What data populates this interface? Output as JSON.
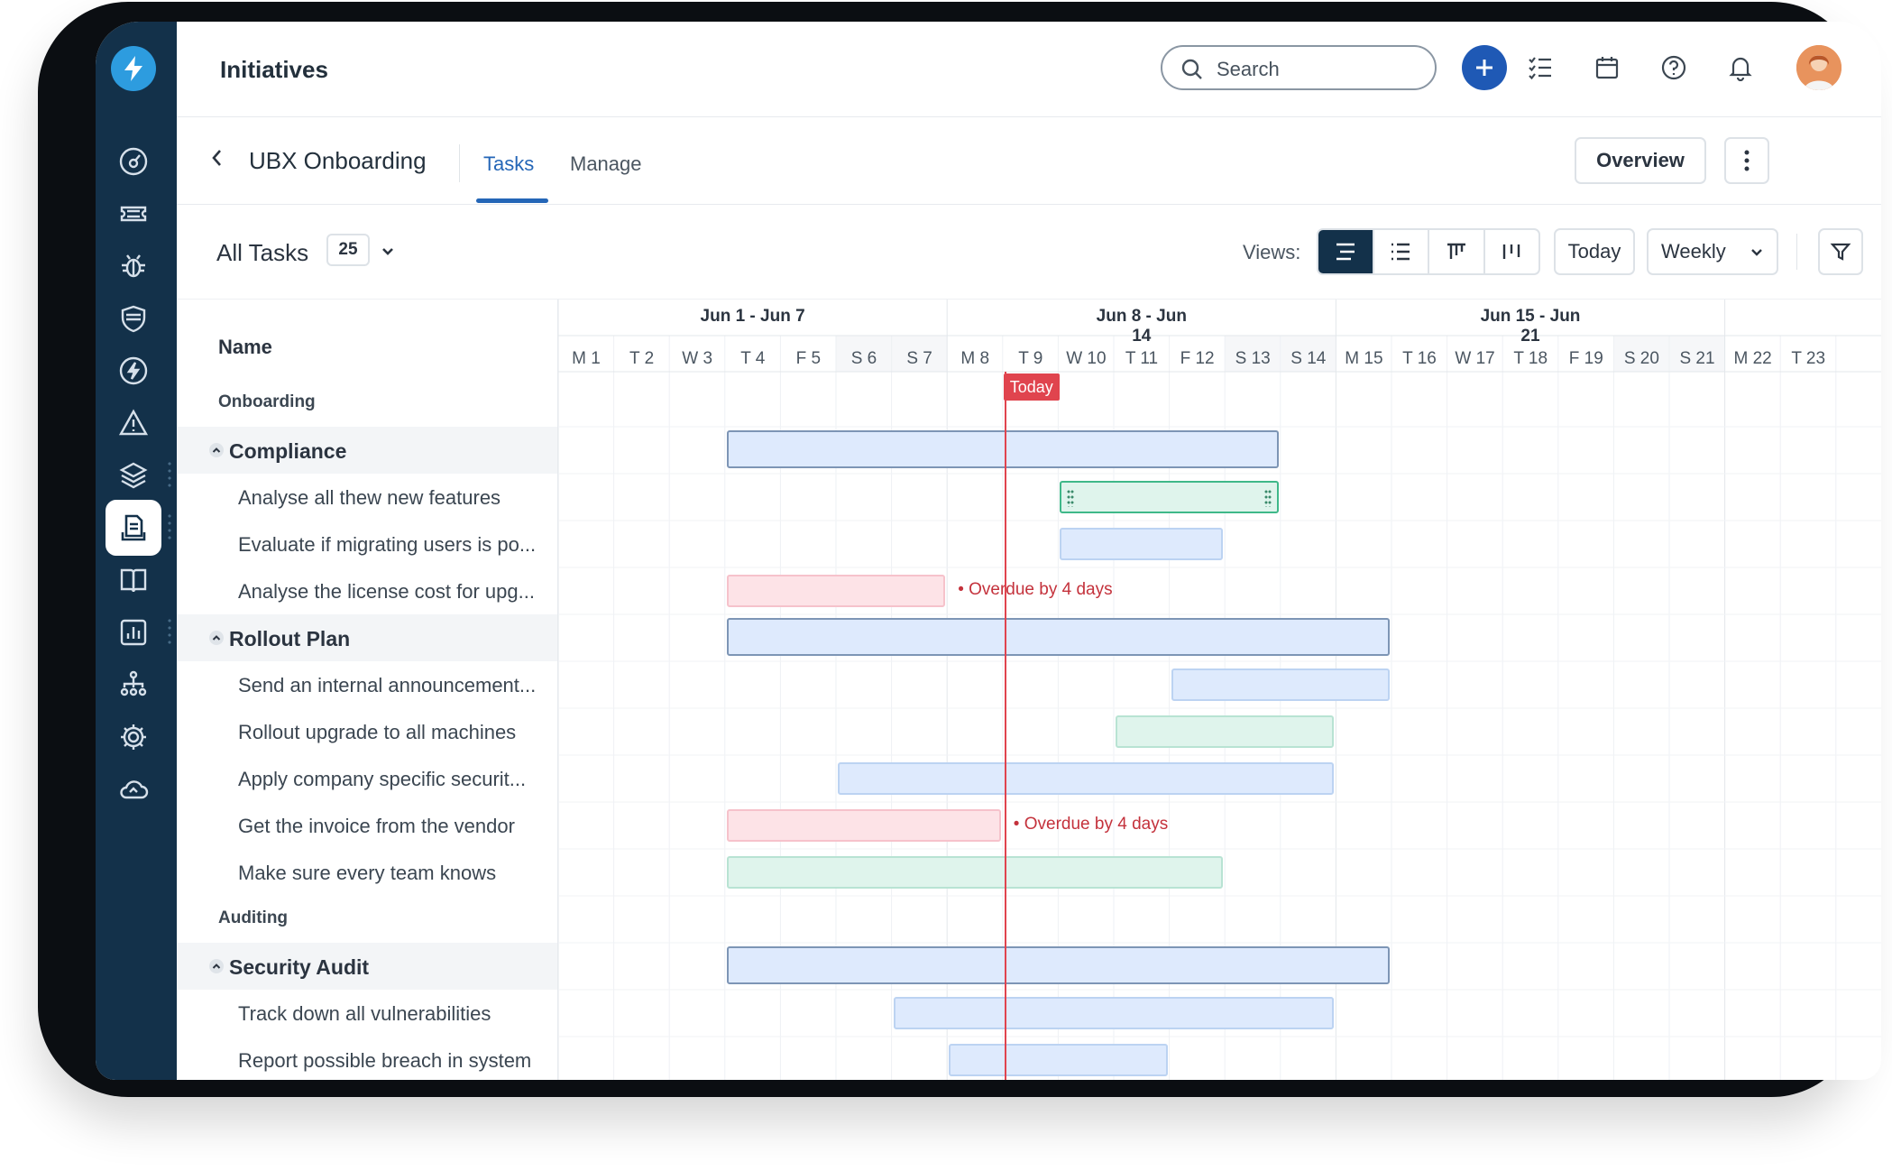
{
  "app": {
    "title": "Initiatives"
  },
  "search": {
    "placeholder": "Search"
  },
  "project": {
    "title": "UBX Onboarding"
  },
  "tabs": [
    {
      "label": "Tasks",
      "active": true
    },
    {
      "label": "Manage",
      "active": false
    }
  ],
  "header_actions": {
    "overview": "Overview"
  },
  "toolbar": {
    "all_tasks": "All Tasks",
    "count": "25",
    "views_label": "Views:",
    "today": "Today",
    "period": "Weekly"
  },
  "name_header": "Name",
  "weeks": [
    "Jun 1 - Jun 7",
    "Jun 8 - Jun 14",
    "Jun 15 - Jun 21"
  ],
  "days": [
    "M 1",
    "T 2",
    "W 3",
    "T 4",
    "F 5",
    "S 6",
    "S 7",
    "M 8",
    "T 9",
    "W 10",
    "T 11",
    "F 12",
    "S 13",
    "S 14",
    "M 15",
    "T 16",
    "W 17",
    "T 18",
    "F 19",
    "S 20",
    "S 21",
    "M 22",
    "T 23"
  ],
  "today_label": "Today",
  "overdue_text": "Overdue by 4 days",
  "rows": [
    {
      "type": "section",
      "label": "Onboarding"
    },
    {
      "type": "group",
      "label": "Compliance"
    },
    {
      "type": "task",
      "label": "Analyse all thew new features"
    },
    {
      "type": "task",
      "label": "Evaluate if migrating users is po..."
    },
    {
      "type": "task",
      "label": "Analyse the license cost for upg..."
    },
    {
      "type": "group",
      "label": "Rollout Plan"
    },
    {
      "type": "task",
      "label": "Send an internal announcement..."
    },
    {
      "type": "task",
      "label": "Rollout upgrade to all machines"
    },
    {
      "type": "task",
      "label": "Apply company specific securit..."
    },
    {
      "type": "task",
      "label": "Get the invoice from the vendor"
    },
    {
      "type": "task",
      "label": "Make sure every team knows"
    },
    {
      "type": "section",
      "label": "Auditing"
    },
    {
      "type": "group",
      "label": "Security Audit"
    },
    {
      "type": "task",
      "label": "Track down all vulnerabilities"
    },
    {
      "type": "task",
      "label": "Report possible breach in system"
    }
  ],
  "colors": {
    "sidebar": "#13314a",
    "accent": "#2466b7",
    "today": "#e0444e",
    "bar_blue": "#deeafd",
    "bar_green": "#dff4ec",
    "bar_red": "#fde3e7"
  }
}
